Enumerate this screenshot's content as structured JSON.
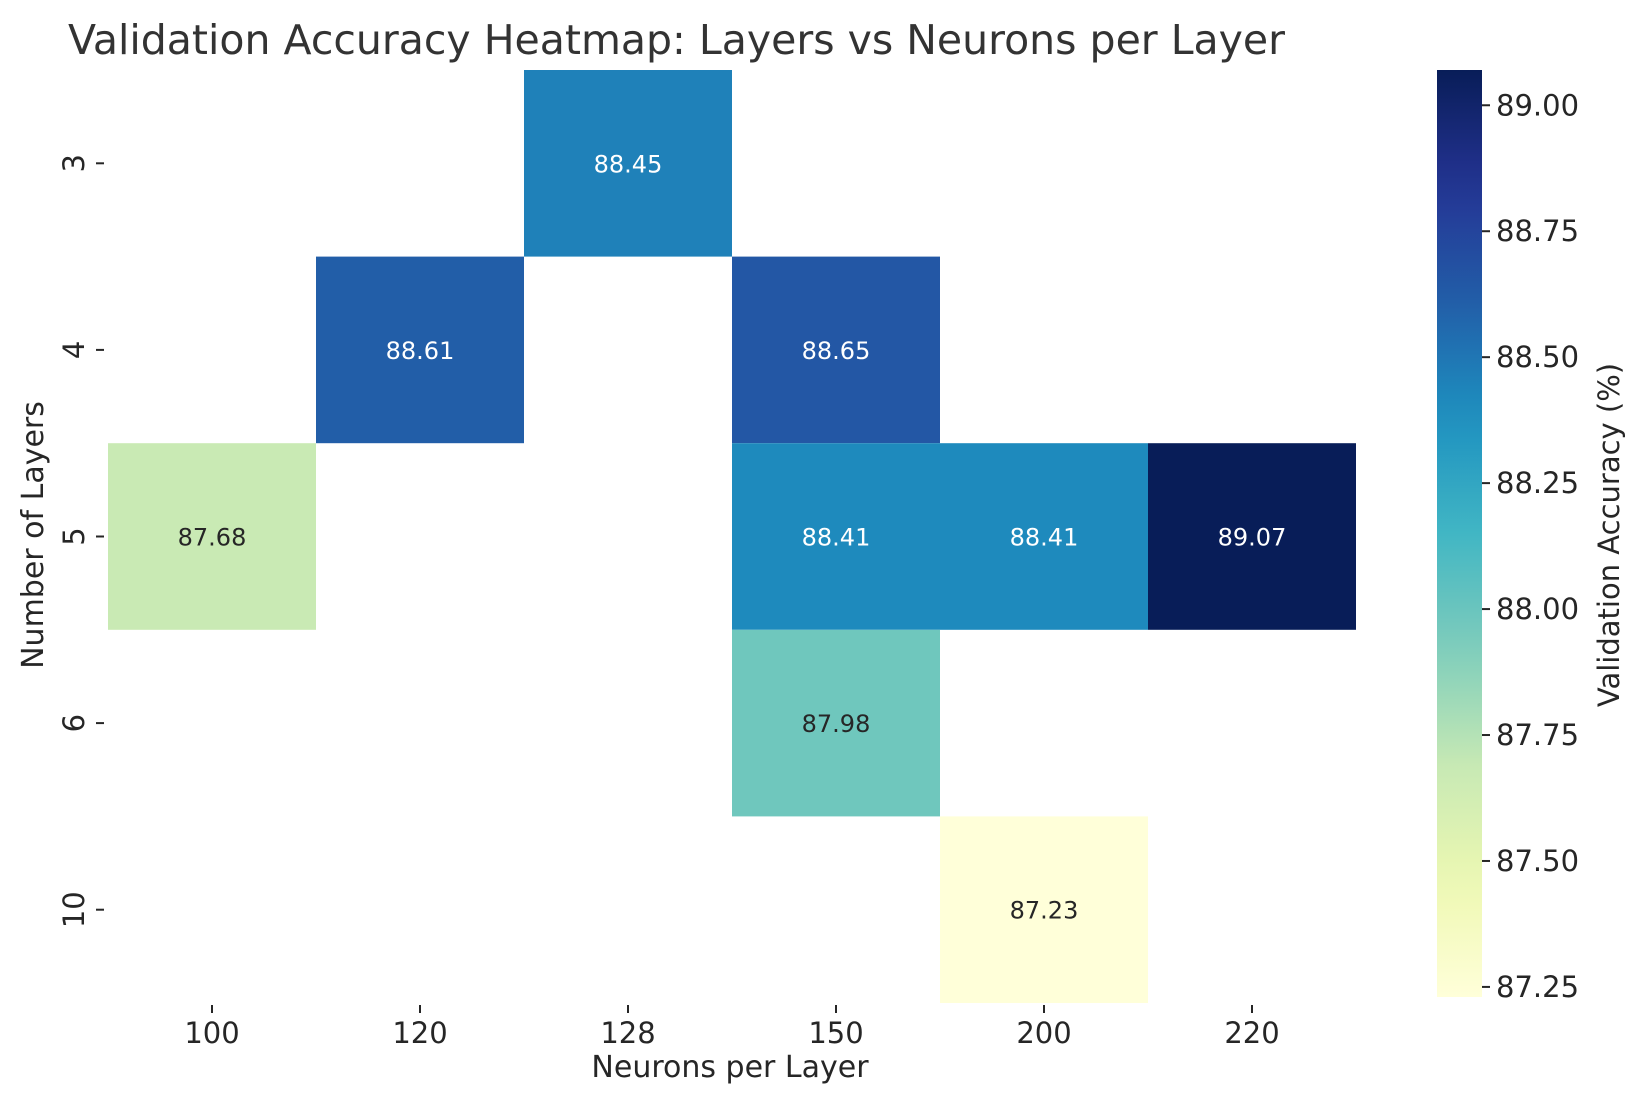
{
  "chart_data": {
    "type": "heatmap",
    "title": "Validation Accuracy Heatmap: Layers vs Neurons per Layer",
    "xlabel": "Neurons per Layer",
    "ylabel": "Number of Layers",
    "x_categories": [
      "100",
      "120",
      "128",
      "150",
      "200",
      "220"
    ],
    "y_categories": [
      "3",
      "4",
      "5",
      "6",
      "10"
    ],
    "cells": [
      {
        "x": "128",
        "y": "3",
        "value": 88.45
      },
      {
        "x": "120",
        "y": "4",
        "value": 88.61
      },
      {
        "x": "150",
        "y": "4",
        "value": 88.65
      },
      {
        "x": "100",
        "y": "5",
        "value": 87.68
      },
      {
        "x": "150",
        "y": "5",
        "value": 88.41
      },
      {
        "x": "200",
        "y": "5",
        "value": 88.41
      },
      {
        "x": "220",
        "y": "5",
        "value": 89.07
      },
      {
        "x": "150",
        "y": "6",
        "value": 87.98
      },
      {
        "x": "200",
        "y": "10",
        "value": 87.23
      }
    ],
    "colorbar": {
      "label": "Validation Accuracy (%)",
      "colormap": "YlGnBu",
      "range": [
        87.23,
        89.07
      ],
      "ticks": [
        "87.25",
        "87.50",
        "87.75",
        "88.00",
        "88.25",
        "88.50",
        "88.75",
        "89.00"
      ]
    }
  }
}
